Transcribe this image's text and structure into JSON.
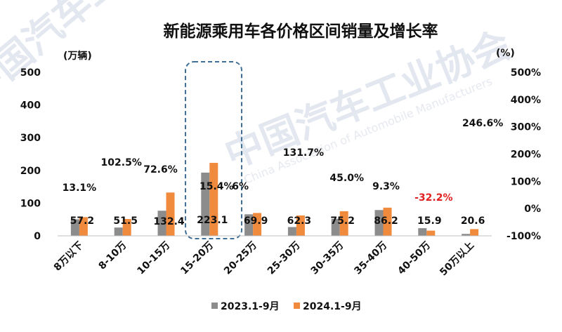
{
  "chart_data": {
    "type": "bar",
    "title": "新能源乘用车各价格区间销量及增长率",
    "ylabel_left": "(万辆)",
    "ylabel_right": "(%)",
    "ylim_left": [
      0,
      500
    ],
    "yticks_left": [
      "0",
      "100",
      "200",
      "300",
      "400",
      "500"
    ],
    "ylim_right": [
      -100,
      500
    ],
    "yticks_right": [
      "-100%",
      "0%",
      "100%",
      "200%",
      "300%",
      "400%",
      "500%"
    ],
    "categories": [
      "8万以下",
      "8-10万",
      "10-15万",
      "15-20万",
      "20-25万",
      "25-30万",
      "30-35万",
      "35-40万",
      "40-50万",
      "50万以上"
    ],
    "series": [
      {
        "name": "2023.1-9月",
        "color": "#8c8c8c",
        "values": [
          50.6,
          25.4,
          76.8,
          193.3,
          65.9,
          26.9,
          51.9,
          78.9,
          23.4,
          5.9
        ]
      },
      {
        "name": "2024.1-9月",
        "color": "#f08a3c",
        "values": [
          57.2,
          51.5,
          132.4,
          223.1,
          69.9,
          62.3,
          75.2,
          86.2,
          15.9,
          20.6
        ]
      }
    ],
    "value_labels": [
      "57.2",
      "51.5",
      "132.4",
      "223.1",
      "69.9",
      "62.3",
      "75.2",
      "86.2",
      "15.9",
      "20.6"
    ],
    "growth_rates": [
      {
        "text": "13.1%",
        "color": "#111111"
      },
      {
        "text": "102.5%",
        "color": "#111111"
      },
      {
        "text": "72.6%",
        "color": "#111111"
      },
      {
        "text": "15.4%",
        "color": "#111111"
      },
      {
        "text": "6%",
        "color": "#111111"
      },
      {
        "text": "131.7%",
        "color": "#111111"
      },
      {
        "text": "45.0%",
        "color": "#111111"
      },
      {
        "text": "9.3%",
        "color": "#111111"
      },
      {
        "text": "-32.2%",
        "color": "#e02020"
      },
      {
        "text": "246.6%",
        "color": "#111111"
      }
    ],
    "highlight_category": "15-20万",
    "grid": false,
    "legend_position": "bottom"
  },
  "watermark": {
    "text": "中国汽车工业协会",
    "subtext": "China Association of Automobile Manufacturers"
  }
}
